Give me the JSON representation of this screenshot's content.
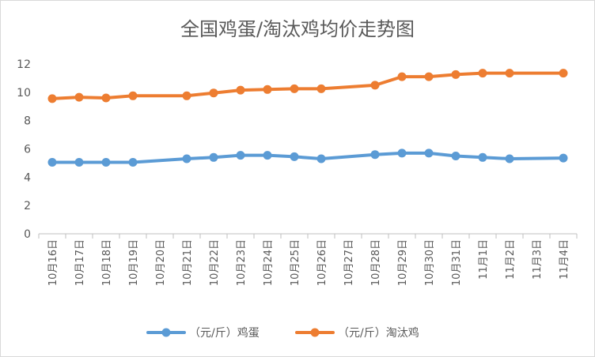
{
  "chart_data": {
    "type": "line",
    "title": "全国鸡蛋/淘汰鸡均价走势图",
    "categories": [
      "10月16日",
      "10月17日",
      "10月18日",
      "10月19日",
      "10月20日",
      "10月21日",
      "10月22日",
      "10月23日",
      "10月24日",
      "10月25日",
      "10月26日",
      "10月27日",
      "10月28日",
      "10月29日",
      "10月30日",
      "10月31日",
      "11月1日",
      "11月2日",
      "11月3日",
      "11月4日"
    ],
    "yticks": [
      "0",
      "2",
      "4",
      "6",
      "8",
      "10",
      "12"
    ],
    "ylim": [
      0,
      12
    ],
    "grid": false,
    "legend_position": "bottom",
    "series": [
      {
        "name": "（元/斤）鸡蛋",
        "color": "#5B9BD5",
        "values": [
          5.05,
          5.05,
          5.05,
          5.05,
          null,
          5.3,
          5.4,
          5.55,
          5.55,
          5.45,
          5.3,
          null,
          5.6,
          5.7,
          5.7,
          5.5,
          5.4,
          5.3,
          null,
          5.35
        ]
      },
      {
        "name": "（元/斤）淘汰鸡",
        "color": "#ED7D31",
        "values": [
          9.55,
          9.65,
          9.6,
          9.75,
          null,
          9.75,
          9.95,
          10.15,
          10.2,
          10.25,
          10.25,
          null,
          10.5,
          11.1,
          11.1,
          11.25,
          11.35,
          11.35,
          null,
          11.35
        ]
      }
    ]
  }
}
